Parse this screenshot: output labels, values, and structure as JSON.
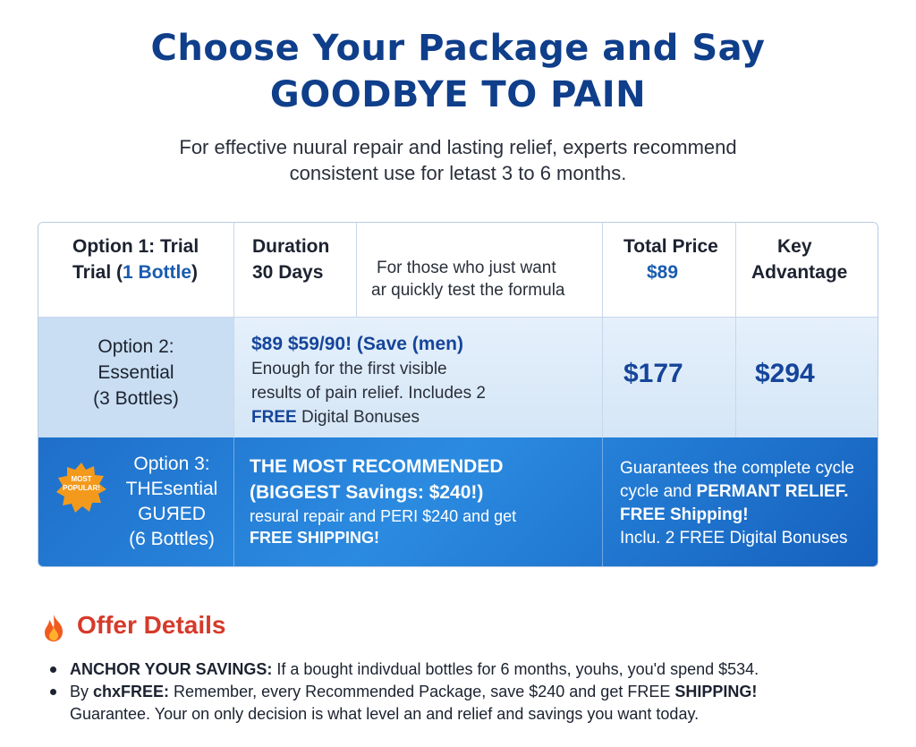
{
  "header": {
    "title_line1": "Choose Your Package and Say",
    "title_line2": "GOODBYE TO PAIN",
    "subtitle_line1": "For effective nuural repair and lasting relief, experts recommend",
    "subtitle_line2": "consistent use for letast 3 to 6 months."
  },
  "table": {
    "row1": {
      "option_line1": "Option 1: Trial",
      "option_line2_prefix": "Trial (",
      "option_line2_highlight": "1 Bottle",
      "option_line2_suffix": ")",
      "duration_label": "Duration",
      "duration_value": "30 Days",
      "desc_line1": "For those who just want",
      "desc_line2": "ar quickly test the formula",
      "price_label": "Total Price",
      "price_value": "$89",
      "key_line1": "Key",
      "key_line2": "Advantage"
    },
    "row2": {
      "option_line1": "Option 2:",
      "option_line2": "Essential",
      "option_line3": "(3 Bottles)",
      "promo": "$89 $59/90! (Save (men)",
      "desc_line1": "Enough for the first visible",
      "desc_line2": "results of pain relief. Includes 2",
      "desc_line3_bold": "FREE",
      "desc_line3_rest": " Digital Bonuses",
      "price": "$177",
      "advantage": "$294"
    },
    "row3": {
      "badge_line1": "MOST",
      "badge_line2": "POPULAR!",
      "option_line1": "Option 3:",
      "option_line2": "THEsential",
      "option_line3": "GUЯED",
      "option_line4": "(6 Bottles)",
      "headline": "THE MOST RECOMMENDED",
      "savings": "(BIGGEST Savings: $240!)",
      "desc_line1": "resural repair and PERI $240 and get",
      "desc_line2": "FREE SHIPPING!",
      "adv_line1": "Guarantees the complete cycle",
      "adv_line2_rest": "cycle and ",
      "adv_line2_bold": "PERMANT RELIEF.",
      "adv_line3": "FREE Shipping!",
      "adv_line4": "Inclu. 2 FREE Digital Bonuses"
    }
  },
  "offer": {
    "title": "Offer Details",
    "icon": "flame-icon",
    "bullet1_bold": "ANCHOR YOUR SAVINGS:",
    "bullet1_rest": " If a bought indivdual bottles for 6 months, youhs, you'd spend $534.",
    "bullet2_prefix": "By ",
    "bullet2_bold": "chxFREE:",
    "bullet2_rest": " Remember, every Recommended Package, save $240 and get FREE ",
    "bullet2_bold2": "SHIPPING!",
    "bullet2_line2": "Guarantee. Your on only decision is what level an and relief and savings you want today."
  },
  "colors": {
    "title": "#0f3e8a",
    "accent_blue": "#1f6fca",
    "offer_red": "#d63a2a",
    "badge_orange": "#f39a1c"
  }
}
